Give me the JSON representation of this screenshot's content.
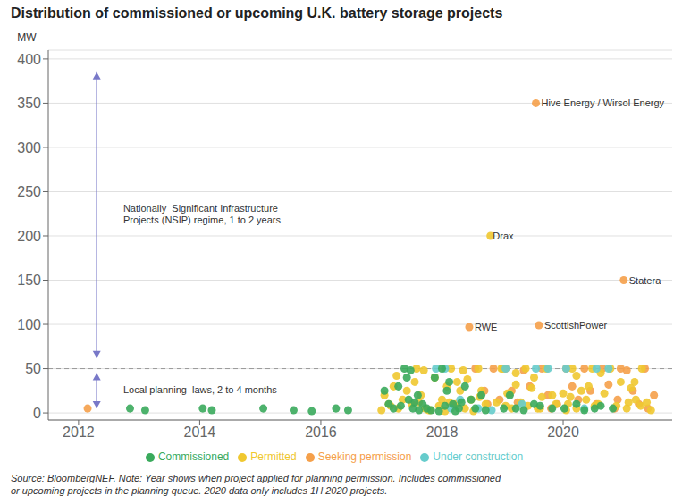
{
  "chart_data": {
    "type": "scatter",
    "title": "Distribution of commissioned or upcoming U.K. battery storage projects",
    "y_label": "MW",
    "xlim": [
      2011.5,
      2021.8
    ],
    "ylim": [
      -8,
      410
    ],
    "xticks": [
      2012,
      2014,
      2016,
      2018,
      2020
    ],
    "yticks": [
      0,
      50,
      100,
      150,
      200,
      250,
      300,
      350,
      400
    ],
    "grid": "y",
    "series": [
      {
        "name": "Seeking permission",
        "color": "#f5a04a",
        "values": [
          [
            2012.15,
            5
          ],
          [
            2018.55,
            50
          ],
          [
            2018.7,
            25
          ],
          [
            2018.75,
            10
          ],
          [
            2018.45,
            97
          ],
          [
            2018.85,
            50
          ],
          [
            2018.95,
            15
          ],
          [
            2019.05,
            50
          ],
          [
            2019.15,
            25
          ],
          [
            2019.25,
            12
          ],
          [
            2019.35,
            48
          ],
          [
            2019.45,
            30
          ],
          [
            2019.55,
            350
          ],
          [
            2019.65,
            50
          ],
          [
            2019.75,
            20
          ],
          [
            2019.9,
            10
          ],
          [
            2019.6,
            99
          ],
          [
            2020.05,
            50
          ],
          [
            2020.15,
            30
          ],
          [
            2020.25,
            15
          ],
          [
            2020.35,
            50
          ],
          [
            2020.45,
            25
          ],
          [
            2020.55,
            10
          ],
          [
            2020.65,
            50
          ],
          [
            2020.75,
            32
          ],
          [
            2020.85,
            5
          ],
          [
            2021.05,
            48
          ],
          [
            2021.15,
            25
          ],
          [
            2021.25,
            10
          ],
          [
            2021.35,
            50
          ],
          [
            2021.0,
            150
          ],
          [
            2020.95,
            50
          ],
          [
            2021.4,
            5
          ],
          [
            2021.5,
            20
          ],
          [
            2019.8,
            5
          ],
          [
            2020.9,
            15
          ]
        ]
      },
      {
        "name": "Permitted",
        "color": "#f0c830",
        "values": [
          [
            2017.05,
            20
          ],
          [
            2017.12,
            10
          ],
          [
            2017.2,
            30
          ],
          [
            2017.28,
            5
          ],
          [
            2017.35,
            15
          ],
          [
            2017.42,
            25
          ],
          [
            2017.5,
            10
          ],
          [
            2017.58,
            50
          ],
          [
            2017.65,
            20
          ],
          [
            2017.72,
            5
          ],
          [
            2017.8,
            3
          ],
          [
            2017.88,
            40
          ],
          [
            2017.95,
            8
          ],
          [
            2018.0,
            15
          ],
          [
            2018.08,
            30
          ],
          [
            2018.15,
            50
          ],
          [
            2018.22,
            10
          ],
          [
            2018.3,
            25
          ],
          [
            2018.38,
            5
          ],
          [
            2018.48,
            15
          ],
          [
            2018.6,
            50
          ],
          [
            2018.65,
            25
          ],
          [
            2018.72,
            10
          ],
          [
            2018.8,
            200
          ],
          [
            2018.9,
            12
          ],
          [
            2018.98,
            50
          ],
          [
            2019.0,
            50
          ],
          [
            2019.08,
            22
          ],
          [
            2019.15,
            5
          ],
          [
            2019.22,
            32
          ],
          [
            2019.3,
            12
          ],
          [
            2019.38,
            50
          ],
          [
            2019.48,
            28
          ],
          [
            2019.58,
            5
          ],
          [
            2019.65,
            18
          ],
          [
            2019.72,
            50
          ],
          [
            2019.82,
            20
          ],
          [
            2019.88,
            10
          ],
          [
            2020.0,
            22
          ],
          [
            2020.08,
            10
          ],
          [
            2020.15,
            50
          ],
          [
            2020.22,
            5
          ],
          [
            2020.3,
            25
          ],
          [
            2020.38,
            15
          ],
          [
            2020.48,
            50
          ],
          [
            2020.58,
            10
          ],
          [
            2020.68,
            22
          ],
          [
            2020.78,
            50
          ],
          [
            2020.88,
            8
          ],
          [
            2020.95,
            35
          ],
          [
            2021.05,
            5
          ],
          [
            2021.12,
            28
          ],
          [
            2021.2,
            15
          ],
          [
            2021.3,
            50
          ],
          [
            2021.38,
            12
          ],
          [
            2021.45,
            3
          ],
          [
            2017.0,
            3
          ],
          [
            2017.15,
            8
          ],
          [
            2017.25,
            42
          ],
          [
            2018.05,
            2
          ],
          [
            2018.12,
            12
          ],
          [
            2018.25,
            35
          ],
          [
            2018.35,
            48
          ],
          [
            2019.05,
            8
          ],
          [
            2019.12,
            22
          ],
          [
            2019.22,
            45
          ],
          [
            2020.05,
            3
          ],
          [
            2020.12,
            18
          ],
          [
            2020.22,
            42
          ],
          [
            2021.08,
            12
          ],
          [
            2017.55,
            35
          ],
          [
            2017.62,
            12
          ],
          [
            2017.7,
            48
          ],
          [
            2017.78,
            3
          ],
          [
            2018.42,
            38
          ],
          [
            2018.52,
            2
          ],
          [
            2018.62,
            18
          ],
          [
            2019.42,
            8
          ],
          [
            2019.52,
            40
          ],
          [
            2019.62,
            5
          ],
          [
            2020.42,
            30
          ],
          [
            2020.52,
            8
          ],
          [
            2020.62,
            45
          ],
          [
            2021.18,
            35
          ],
          [
            2021.28,
            8
          ]
        ]
      },
      {
        "name": "Under construction",
        "color": "#66cccc",
        "values": [
          [
            2017.9,
            50
          ],
          [
            2018.05,
            50
          ],
          [
            2018.3,
            15
          ],
          [
            2018.6,
            5
          ],
          [
            2018.82,
            3
          ],
          [
            2019.05,
            50
          ],
          [
            2019.32,
            10
          ],
          [
            2019.55,
            50
          ],
          [
            2020.05,
            50
          ],
          [
            2020.35,
            5
          ],
          [
            2020.55,
            50
          ],
          [
            2020.75,
            50
          ],
          [
            2018.15,
            5
          ],
          [
            2019.75,
            50
          ]
        ]
      },
      {
        "name": "Commissioned",
        "color": "#3aaa5c",
        "values": [
          [
            2012.85,
            5
          ],
          [
            2013.1,
            3
          ],
          [
            2014.05,
            5
          ],
          [
            2014.2,
            3
          ],
          [
            2015.05,
            5
          ],
          [
            2015.55,
            3
          ],
          [
            2015.85,
            2
          ],
          [
            2016.25,
            5
          ],
          [
            2016.45,
            3
          ],
          [
            2017.05,
            25
          ],
          [
            2017.12,
            10
          ],
          [
            2017.2,
            5
          ],
          [
            2017.28,
            30
          ],
          [
            2017.38,
            50
          ],
          [
            2017.45,
            15
          ],
          [
            2017.52,
            5
          ],
          [
            2017.6,
            20
          ],
          [
            2017.68,
            10
          ],
          [
            2017.75,
            5
          ],
          [
            2017.82,
            3
          ],
          [
            2017.88,
            40
          ],
          [
            2017.95,
            2
          ],
          [
            2017.48,
            48
          ],
          [
            2017.55,
            12
          ],
          [
            2017.62,
            3
          ],
          [
            2018.05,
            8
          ],
          [
            2018.12,
            35
          ],
          [
            2018.22,
            2
          ],
          [
            2018.32,
            12
          ],
          [
            2018.0,
            50
          ],
          [
            2018.08,
            25
          ],
          [
            2018.18,
            10
          ],
          [
            2018.28,
            5
          ],
          [
            2018.38,
            30
          ],
          [
            2018.48,
            15
          ],
          [
            2018.55,
            5
          ],
          [
            2018.65,
            20
          ],
          [
            2018.72,
            3
          ],
          [
            2019.02,
            5
          ],
          [
            2019.12,
            20
          ],
          [
            2019.22,
            5
          ],
          [
            2019.52,
            10
          ],
          [
            2019.82,
            5
          ],
          [
            2020.02,
            5
          ],
          [
            2020.22,
            10
          ],
          [
            2020.52,
            5
          ],
          [
            2020.82,
            5
          ],
          [
            2019.35,
            3
          ],
          [
            2019.62,
            8
          ],
          [
            2020.35,
            3
          ],
          [
            2020.62,
            8
          ],
          [
            2017.32,
            8
          ],
          [
            2017.42,
            40
          ]
        ]
      }
    ],
    "reference_line": {
      "y": 50,
      "line_style": "dashed",
      "color": "#999999"
    },
    "arrows": [
      {
        "x": 2012.3,
        "y": [
          385,
          62
        ],
        "color": "#7878c8"
      },
      {
        "x": 2012.3,
        "y": [
          45,
          5
        ],
        "color": "#7878c8"
      }
    ],
    "annotations": [
      {
        "text": "Nationally  Significant Infrastructure\nProjects (NSIP) regime, 1 to 2 years",
        "x": 2012.65,
        "y": 225
      },
      {
        "text": "Local planning  laws, 2 to 4 months",
        "x": 2012.65,
        "y": 26
      },
      {
        "text": "Hive Energy / Wirsol Energy",
        "x": 2019.55,
        "y": 350
      },
      {
        "text": "Drax",
        "x": 2018.75,
        "y": 200
      },
      {
        "text": "RWE",
        "x": 2018.45,
        "y": 97
      },
      {
        "text": "ScottishPower",
        "x": 2019.6,
        "y": 99
      },
      {
        "text": "Statera",
        "x": 2021.0,
        "y": 150
      }
    ],
    "source": "Source: BloombergNEF. Note: Year shows when project applied for planning permission. Includes commissioned\nor upcoming projects in the planning queue. 2020 data only includes 1H 2020 projects."
  }
}
